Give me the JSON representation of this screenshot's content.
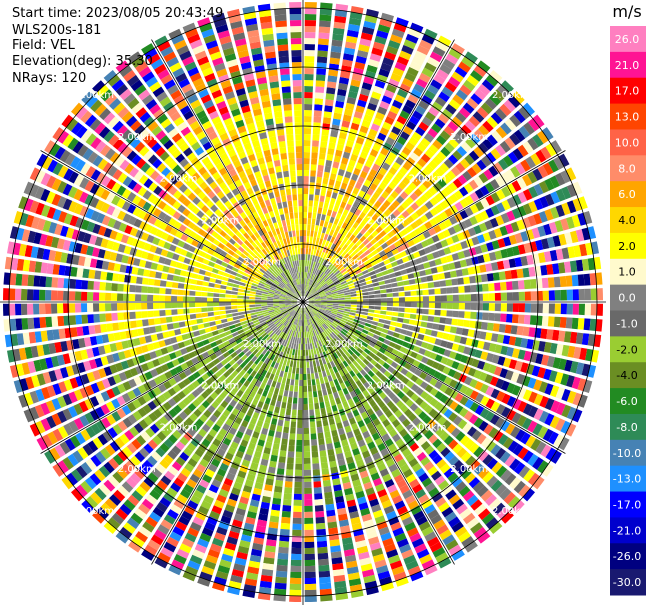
{
  "header": {
    "start_time": "Start time: 2023/08/05 20:43:49",
    "device": "WLS200s-181",
    "field": "Field: VEL",
    "elevation": "Elevation(deg): 35.30",
    "nrays": "NRays: 120"
  },
  "chart_data": {
    "type": "heatmap",
    "subtype": "polar-ppi",
    "field": "VEL",
    "nrays": 120,
    "range_ring_labels": [
      "2.00km"
    ],
    "colorbar": {
      "unit": "m/s",
      "ticks": [
        26.0,
        21.0,
        17.0,
        13.0,
        10.0,
        8.0,
        6.0,
        4.0,
        2.0,
        1.0,
        0.0,
        -1.0,
        -2.0,
        -4.0,
        -6.0,
        -8.0,
        -10.0,
        -13.0,
        -17.0,
        -21.0,
        -26.0,
        -30.0
      ],
      "tick_labels": [
        "26.0",
        "21.0",
        "17.0",
        "13.0",
        "10.0",
        "8.0",
        "6.0",
        "4.0",
        "2.0",
        "1.0",
        "0.0",
        "-1.0",
        "-2.0",
        "-4.0",
        "-6.0",
        "-8.0",
        "-10.0",
        "-13.0",
        "-17.0",
        "-21.0",
        "-26.0",
        "-30.0"
      ],
      "colors": [
        "#ff7fc0",
        "#ff1493",
        "#ff0000",
        "#ff4500",
        "#ff6347",
        "#ff8c69",
        "#ffa500",
        "#ffd700",
        "#ffff00",
        "#fffacd",
        "#808080",
        "#696969",
        "#9acd32",
        "#6b8e23",
        "#228b22",
        "#2e8b57",
        "#4682b4",
        "#1e90ff",
        "#0000ff",
        "#0000cd",
        "#000080",
        "#191970"
      ]
    }
  }
}
